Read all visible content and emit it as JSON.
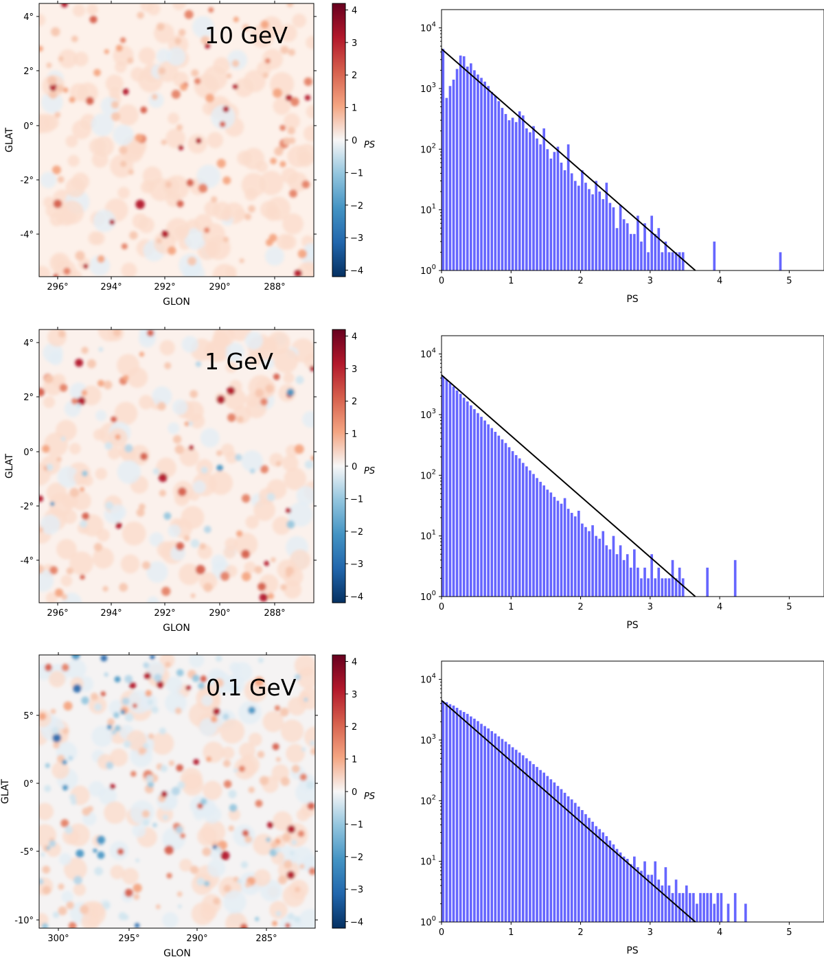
{
  "chart_data": [
    {
      "type": "heatmap",
      "energy_label": "10 GeV",
      "xlabel": "GLON",
      "ylabel": "GLAT",
      "xticks": [
        "296°",
        "294°",
        "292°",
        "290°",
        "288°"
      ],
      "yticks": [
        "4°",
        "2°",
        "0°",
        "-2°",
        "-4°"
      ],
      "colorbar": {
        "label": "PS",
        "ticks": [
          "4",
          "3",
          "2",
          "1",
          "0",
          "−1",
          "−2",
          "−3",
          "−4"
        ],
        "range": [
          -4.2,
          4.2
        ],
        "colormap": "RdBu_r"
      },
      "field": {
        "bias": 0.33,
        "n_hot": 110,
        "n_cold": 0,
        "seed": 11
      }
    },
    {
      "type": "bar",
      "yscale": "log",
      "xlabel": "PS",
      "xticks": [
        "0",
        "1",
        "2",
        "3",
        "4",
        "5"
      ],
      "yticks": [
        "10^0",
        "10^1",
        "10^2",
        "10^3",
        "10^4"
      ],
      "xlim": [
        0,
        5.5
      ],
      "ylim": [
        1,
        20000
      ],
      "bar_color": "#6666ff",
      "x": [
        0,
        0.05,
        0.1,
        0.15,
        0.2,
        0.25,
        0.3,
        0.35,
        0.4,
        0.45,
        0.5,
        0.55,
        0.6,
        0.65,
        0.7,
        0.75,
        0.8,
        0.85,
        0.9,
        0.95,
        1,
        1.05,
        1.1,
        1.15,
        1.2,
        1.25,
        1.3,
        1.35,
        1.4,
        1.45,
        1.5,
        1.55,
        1.6,
        1.65,
        1.7,
        1.75,
        1.8,
        1.85,
        1.9,
        1.95,
        2,
        2.05,
        2.1,
        2.15,
        2.2,
        2.25,
        2.3,
        2.35,
        2.4,
        2.45,
        2.5,
        2.55,
        2.6,
        2.65,
        2.7,
        2.75,
        2.8,
        2.85,
        2.9,
        2.95,
        3,
        3.05,
        3.1,
        3.15,
        3.2,
        3.25,
        3.3,
        3.35,
        3.4,
        3.45,
        3.9,
        4.85
      ],
      "values": [
        4500,
        700,
        1100,
        1400,
        2100,
        3500,
        3400,
        2300,
        2600,
        2000,
        1700,
        1500,
        1300,
        1100,
        880,
        760,
        620,
        480,
        380,
        300,
        330,
        280,
        420,
        360,
        220,
        190,
        240,
        150,
        120,
        220,
        100,
        70,
        90,
        110,
        60,
        45,
        120,
        40,
        30,
        25,
        45,
        28,
        22,
        18,
        30,
        20,
        15,
        28,
        13,
        11,
        5,
        12,
        7,
        6,
        4,
        4,
        8,
        3,
        6,
        2,
        8,
        4,
        5,
        2,
        3,
        2,
        2,
        2,
        2,
        2,
        3,
        2
      ],
      "fit_line": {
        "x0": 0,
        "y0": 4500,
        "x1": 3.65,
        "y1": 1
      }
    },
    {
      "type": "heatmap",
      "energy_label": "1 GeV",
      "xlabel": "GLON",
      "ylabel": "GLAT",
      "xticks": [
        "296°",
        "294°",
        "292°",
        "290°",
        "288°"
      ],
      "yticks": [
        "4°",
        "2°",
        "0°",
        "-2°",
        "-4°"
      ],
      "colorbar": {
        "label": "PS",
        "ticks": [
          "4",
          "3",
          "2",
          "1",
          "0",
          "−1",
          "−2",
          "−3",
          "−4"
        ],
        "range": [
          -4.2,
          4.2
        ],
        "colormap": "RdBu_r"
      },
      "field": {
        "bias": 0.18,
        "n_hot": 90,
        "n_cold": 25,
        "seed": 23
      }
    },
    {
      "type": "bar",
      "yscale": "log",
      "xlabel": "PS",
      "xticks": [
        "0",
        "1",
        "2",
        "3",
        "4",
        "5"
      ],
      "yticks": [
        "10^0",
        "10^1",
        "10^2",
        "10^3",
        "10^4"
      ],
      "xlim": [
        0,
        5.5
      ],
      "ylim": [
        1,
        20000
      ],
      "bar_color": "#6666ff",
      "x": [
        0,
        0.05,
        0.1,
        0.15,
        0.2,
        0.25,
        0.3,
        0.35,
        0.4,
        0.45,
        0.5,
        0.55,
        0.6,
        0.65,
        0.7,
        0.75,
        0.8,
        0.85,
        0.9,
        0.95,
        1,
        1.05,
        1.1,
        1.15,
        1.2,
        1.25,
        1.3,
        1.35,
        1.4,
        1.45,
        1.5,
        1.55,
        1.6,
        1.65,
        1.7,
        1.75,
        1.8,
        1.85,
        1.9,
        1.95,
        2,
        2.05,
        2.1,
        2.15,
        2.2,
        2.25,
        2.3,
        2.35,
        2.4,
        2.45,
        2.5,
        2.55,
        2.6,
        2.65,
        2.7,
        2.75,
        2.8,
        2.85,
        2.9,
        2.95,
        3,
        3.05,
        3.1,
        3.15,
        3.2,
        3.25,
        3.3,
        3.35,
        3.4,
        3.45,
        3.8,
        4.2
      ],
      "values": [
        4300,
        3800,
        3300,
        2900,
        2500,
        2200,
        1900,
        1650,
        1420,
        1230,
        1060,
        920,
        800,
        690,
        600,
        520,
        450,
        390,
        340,
        290,
        250,
        215,
        190,
        160,
        140,
        120,
        105,
        90,
        78,
        68,
        58,
        52,
        44,
        38,
        34,
        42,
        28,
        24,
        21,
        26,
        16,
        14,
        12,
        15,
        10,
        9,
        12,
        7,
        6,
        10,
        5,
        7,
        4,
        5,
        3,
        6,
        3,
        2,
        3,
        2,
        5,
        2,
        3,
        2,
        2,
        2,
        4,
        2,
        3,
        2,
        3,
        4
      ],
      "fit_line": {
        "x0": 0,
        "y0": 4500,
        "x1": 3.65,
        "y1": 1
      }
    },
    {
      "type": "heatmap",
      "energy_label": "0.1 GeV",
      "xlabel": "GLON",
      "ylabel": "GLAT",
      "xticks": [
        "300°",
        "295°",
        "290°",
        "285°"
      ],
      "yticks": [
        "5°",
        "0°",
        "-5°",
        "-10°"
      ],
      "colorbar": {
        "label": "PS",
        "ticks": [
          "4",
          "3",
          "2",
          "1",
          "0",
          "−1",
          "−2",
          "−3",
          "−4"
        ],
        "range": [
          -4.2,
          4.2
        ],
        "colormap": "RdBu_r"
      },
      "field": {
        "bias": 0.05,
        "n_hot": 110,
        "n_cold": 95,
        "seed": 37
      }
    },
    {
      "type": "bar",
      "yscale": "log",
      "xlabel": "PS",
      "xticks": [
        "0",
        "1",
        "2",
        "3",
        "4",
        "5"
      ],
      "yticks": [
        "10^0",
        "10^1",
        "10^2",
        "10^3",
        "10^4"
      ],
      "xlim": [
        0,
        5.5
      ],
      "ylim": [
        1,
        20000
      ],
      "bar_color": "#6666ff",
      "x": [
        0,
        0.05,
        0.1,
        0.15,
        0.2,
        0.25,
        0.3,
        0.35,
        0.4,
        0.45,
        0.5,
        0.55,
        0.6,
        0.65,
        0.7,
        0.75,
        0.8,
        0.85,
        0.9,
        0.95,
        1,
        1.05,
        1.1,
        1.15,
        1.2,
        1.25,
        1.3,
        1.35,
        1.4,
        1.45,
        1.5,
        1.55,
        1.6,
        1.65,
        1.7,
        1.75,
        1.8,
        1.85,
        1.9,
        1.95,
        2,
        2.05,
        2.1,
        2.15,
        2.2,
        2.25,
        2.3,
        2.35,
        2.4,
        2.45,
        2.5,
        2.55,
        2.6,
        2.65,
        2.7,
        2.75,
        2.8,
        2.85,
        2.9,
        2.95,
        3,
        3.05,
        3.1,
        3.15,
        3.2,
        3.25,
        3.3,
        3.35,
        3.4,
        3.45,
        3.5,
        3.55,
        3.6,
        3.65,
        3.7,
        3.75,
        3.8,
        3.85,
        3.9,
        3.95,
        4,
        4.1,
        4.2,
        4.35
      ],
      "values": [
        4400,
        4200,
        3900,
        3700,
        3400,
        3100,
        2900,
        2700,
        2450,
        2250,
        2050,
        1850,
        1700,
        1550,
        1400,
        1280,
        1150,
        1040,
        940,
        850,
        760,
        690,
        620,
        560,
        500,
        450,
        400,
        360,
        320,
        290,
        255,
        225,
        200,
        175,
        155,
        135,
        118,
        105,
        92,
        80,
        70,
        60,
        52,
        45,
        38,
        34,
        30,
        26,
        22,
        19,
        16,
        14,
        12,
        11,
        9,
        12,
        8,
        7,
        10,
        6,
        6,
        10,
        5,
        4,
        8,
        4,
        3,
        5,
        3,
        3,
        4,
        3,
        3,
        2,
        3,
        3,
        3,
        3,
        2,
        3,
        3,
        2,
        3,
        2
      ],
      "fit_line": {
        "x0": 0,
        "y0": 4500,
        "x1": 3.65,
        "y1": 1
      }
    }
  ]
}
